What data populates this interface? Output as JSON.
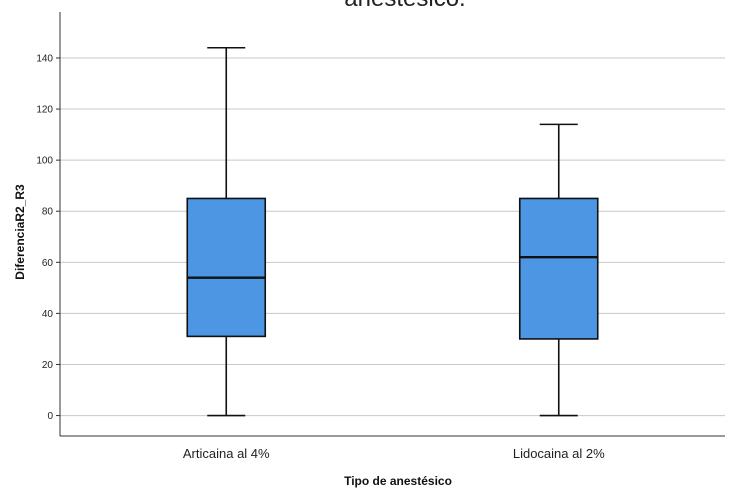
{
  "chart_data": {
    "type": "boxplot",
    "title": "anestésico.",
    "xlabel": "Tipo de anestésico",
    "ylabel": "DiferenciaR2_R3",
    "categories": [
      "Articaina al 4%",
      "Lidocaina al 2%"
    ],
    "boxes": [
      {
        "category": "Articaina al 4%",
        "min": 0,
        "q1": 31,
        "median": 54,
        "q3": 85,
        "max": 144
      },
      {
        "category": "Lidocaina al 2%",
        "min": 0,
        "q1": 30,
        "median": 62,
        "q3": 85,
        "max": 114
      }
    ],
    "yticks": [
      "0",
      "20",
      "40",
      "60",
      "80",
      "100",
      "120",
      "140"
    ],
    "ylim": [
      -8,
      158
    ],
    "grid": true,
    "box_color": "#4c96e3"
  }
}
